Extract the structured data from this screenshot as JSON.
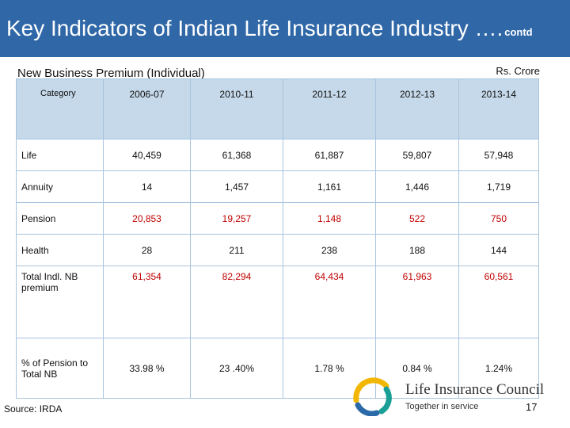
{
  "header": {
    "title": "Key Indicators of Indian Life Insurance Industry ….",
    "contd": "contd"
  },
  "subtitle": "New Business Premium  (Individual)",
  "unit": "Rs. Crore",
  "table": {
    "columns": [
      "Category",
      "2006-07",
      "2010-11",
      "2011-12",
      "2012-13",
      "2013-14"
    ],
    "rows": [
      {
        "category": "Life",
        "values": [
          "40,459",
          "61,368",
          "61,887",
          "59,807",
          "57,948"
        ]
      },
      {
        "category": "Annuity",
        "values": [
          "14",
          "1,457",
          "1,161",
          "1,446",
          "1,719"
        ]
      },
      {
        "category": "Pension",
        "values": [
          "20,853",
          "19,257",
          "1,148",
          "522",
          "750"
        ]
      },
      {
        "category": "Health",
        "values": [
          "28",
          "211",
          "238",
          "188",
          "144"
        ]
      },
      {
        "category": "Total  Indl. NB premium",
        "values": [
          "61,354",
          "82,294",
          "64,434",
          "61,963",
          "60,561"
        ]
      },
      {
        "category": "% of Pension to Total NB",
        "values": [
          "33.98 %",
          "23 .40%",
          "1.78 %",
          "0.84 %",
          "1.24%"
        ]
      }
    ]
  },
  "source": "Source: IRDA",
  "logo": {
    "name": "Life Insurance Council",
    "tagline": "Together in service"
  },
  "page_number": "17",
  "colors": {
    "header_bg": "#2f67a7",
    "table_header_bg": "#c5d9ea",
    "highlight_red": "#c00000"
  }
}
